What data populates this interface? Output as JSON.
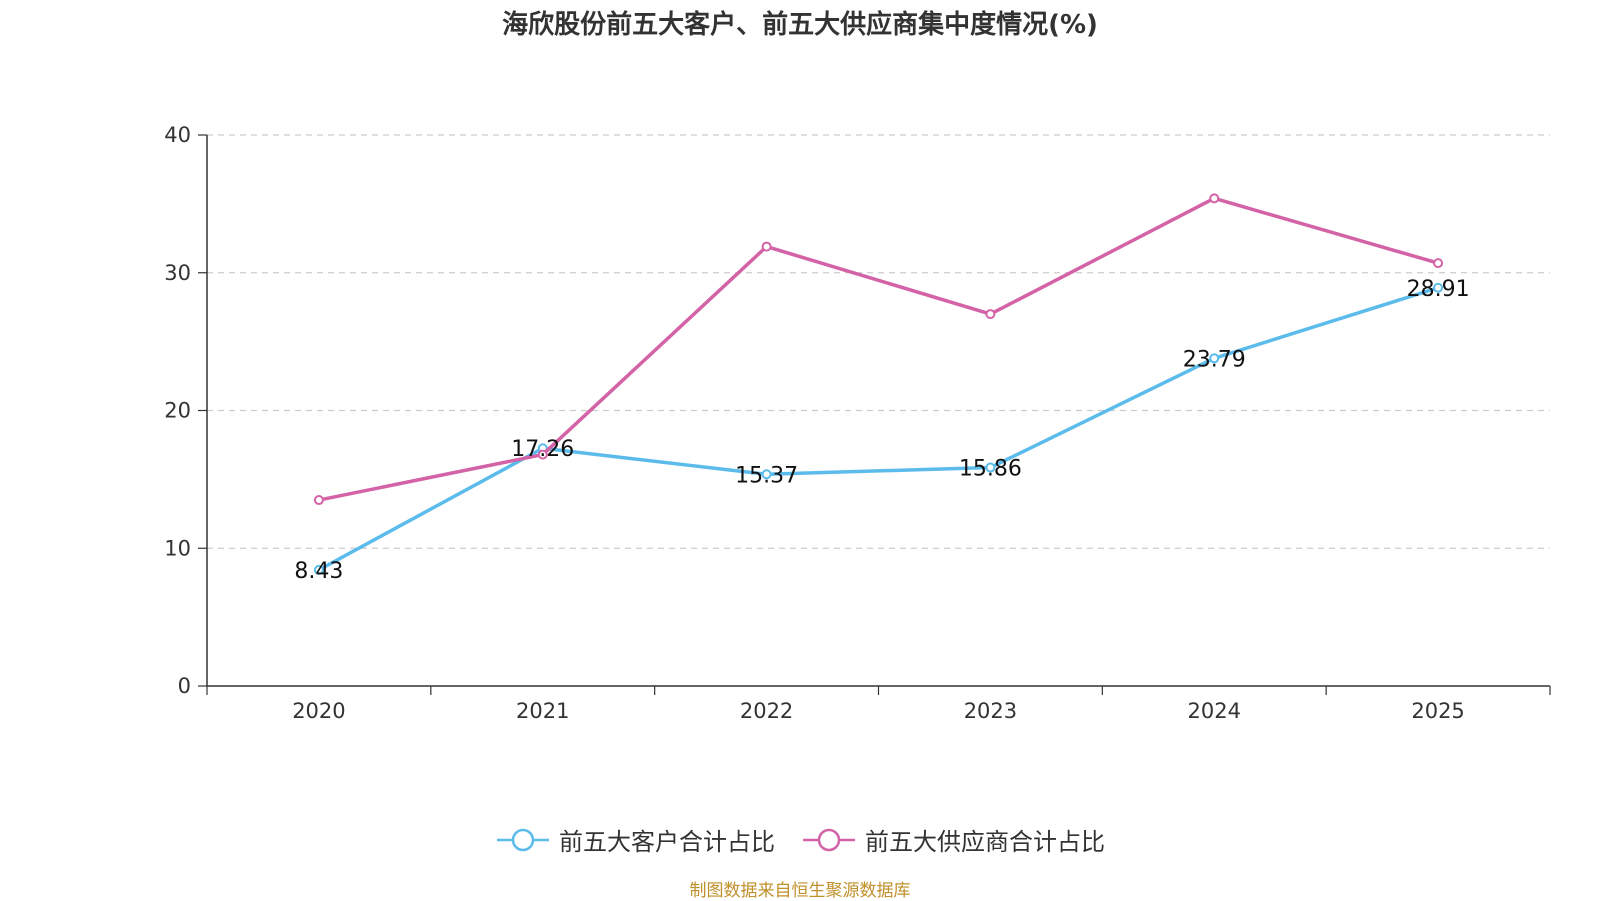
{
  "title": "海欣股份前五大客户、前五大供应商集中度情况(%)",
  "source": "制图数据来自恒生聚源数据库",
  "chart_data": {
    "type": "line",
    "title": "海欣股份前五大客户、前五大供应商集中度情况(%)",
    "categories": [
      "2020",
      "2021",
      "2022",
      "2023",
      "2024",
      "2025"
    ],
    "ylim": [
      0,
      40
    ],
    "yticks": [
      0,
      10,
      20,
      30,
      40
    ],
    "grid": true,
    "legend_position": "bottom",
    "series": [
      {
        "name": "前五大客户合计占比",
        "color": "#5bbcec",
        "values": [
          8.43,
          17.26,
          15.37,
          15.86,
          23.79,
          28.91
        ],
        "labels": [
          "8.43",
          "17.26",
          "15.37",
          "15.86",
          "23.79",
          "28.91"
        ]
      },
      {
        "name": "前五大供应商合计占比",
        "color": "#d462a6",
        "values": [
          13.5,
          16.8,
          31.9,
          27.0,
          35.4,
          30.7
        ],
        "labels": []
      }
    ]
  }
}
